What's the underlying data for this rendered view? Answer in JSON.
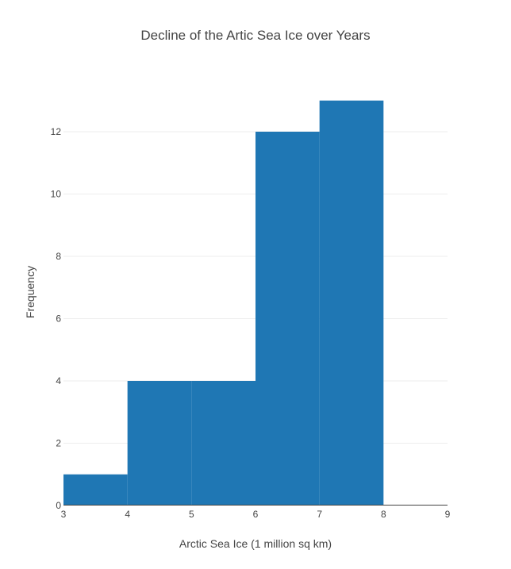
{
  "chart_data": {
    "type": "bar",
    "title": "Decline of the Artic Sea Ice over Years",
    "xlabel": "Arctic Sea Ice (1 million sq km)",
    "ylabel": "Frequency",
    "bins": [
      {
        "x0": 3,
        "x1": 4,
        "value": 1
      },
      {
        "x0": 4,
        "x1": 5,
        "value": 4
      },
      {
        "x0": 5,
        "x1": 6,
        "value": 4
      },
      {
        "x0": 6,
        "x1": 7,
        "value": 12
      },
      {
        "x0": 7,
        "x1": 8,
        "value": 13
      },
      {
        "x0": 8,
        "x1": 9,
        "value": 0
      }
    ],
    "xlim": [
      3,
      9
    ],
    "ylim": [
      0,
      13.68
    ],
    "x_ticks": [
      "3",
      "4",
      "5",
      "6",
      "7",
      "8",
      "9"
    ],
    "y_ticks": [
      "0",
      "2",
      "4",
      "6",
      "8",
      "10",
      "12"
    ],
    "grid": true,
    "bar_color": "#1f77b4"
  }
}
